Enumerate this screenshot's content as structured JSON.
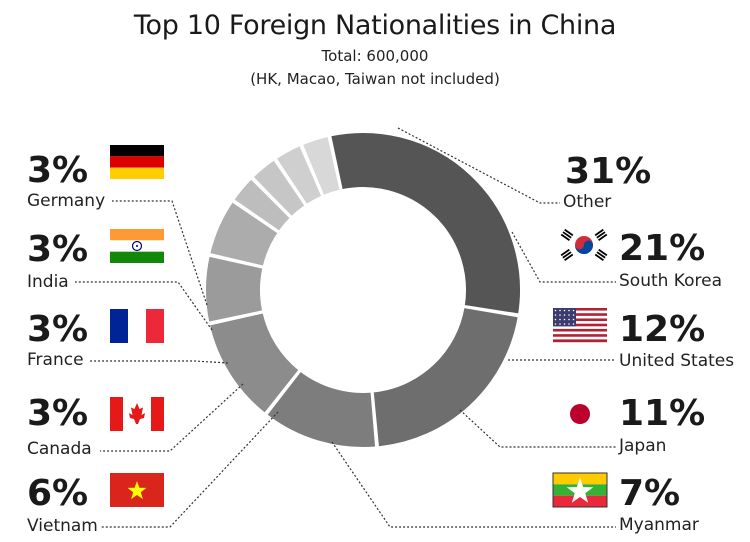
{
  "chart_data": {
    "type": "pie",
    "variant": "donut",
    "title": "Top 10 Foreign Nationalities in China",
    "subtitle_total": "Total: 600,000",
    "subtitle_note": "(HK, Macao, Taiwan not included)",
    "slices": [
      {
        "label": "Other",
        "value": 31,
        "display": "31%",
        "color": "#555555",
        "flag": "none-icon"
      },
      {
        "label": "South Korea",
        "value": 21,
        "display": "21%",
        "color": "#6e6e6e",
        "flag": "south-korea-flag-icon"
      },
      {
        "label": "United States",
        "value": 12,
        "display": "12%",
        "color": "#7d7d7d",
        "flag": "usa-flag-icon"
      },
      {
        "label": "Japan",
        "value": 11,
        "display": "11%",
        "color": "#8c8c8c",
        "flag": "japan-flag-icon"
      },
      {
        "label": "Myanmar",
        "value": 7,
        "display": "7%",
        "color": "#9b9b9b",
        "flag": "myanmar-flag-icon"
      },
      {
        "label": "Vietnam",
        "value": 6,
        "display": "6%",
        "color": "#acacac",
        "flag": "vietnam-flag-icon"
      },
      {
        "label": "Canada",
        "value": 3,
        "display": "3%",
        "color": "#bdbdbd",
        "flag": "canada-flag-icon"
      },
      {
        "label": "France",
        "value": 3,
        "display": "3%",
        "color": "#c6c6c6",
        "flag": "france-flag-icon"
      },
      {
        "label": "India",
        "value": 3,
        "display": "3%",
        "color": "#cfcfcf",
        "flag": "india-flag-icon"
      },
      {
        "label": "Germany",
        "value": 3,
        "display": "3%",
        "color": "#d8d8d8",
        "flag": "germany-flag-icon"
      }
    ]
  }
}
